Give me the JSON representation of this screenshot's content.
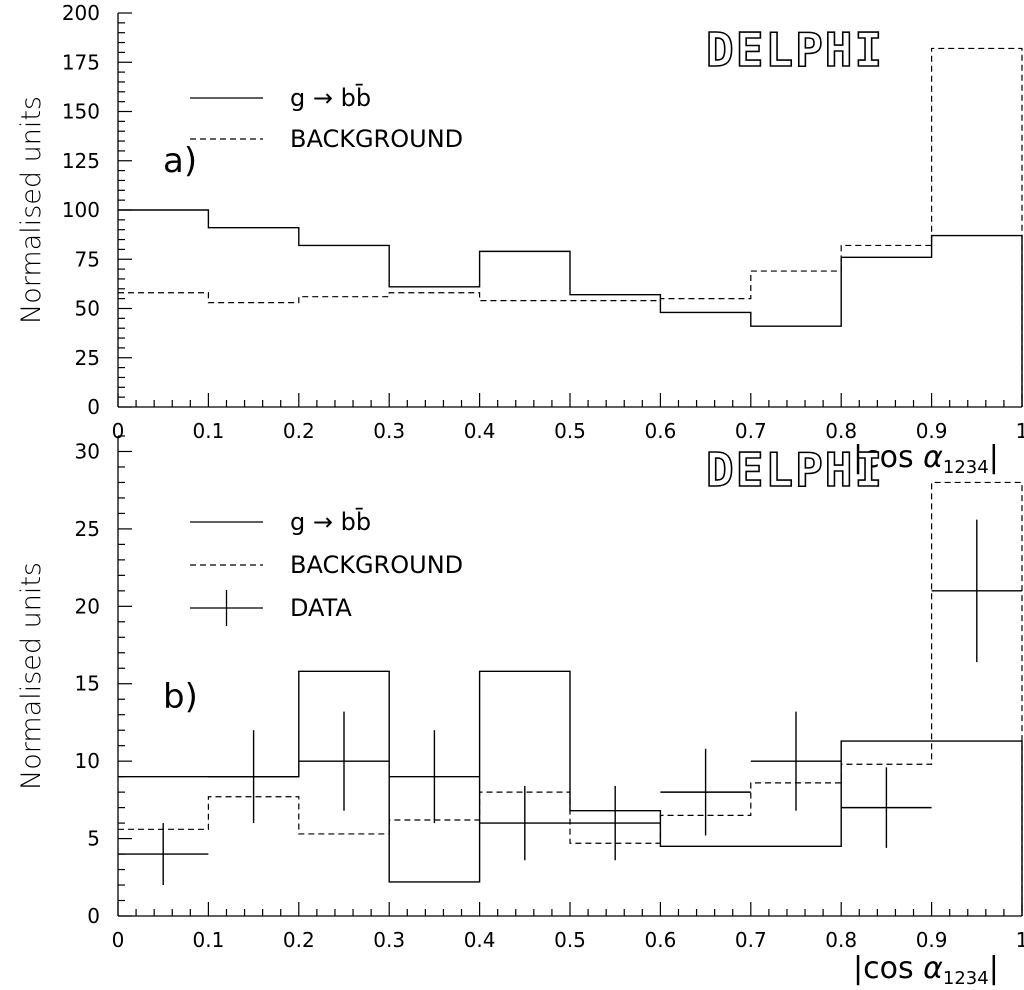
{
  "chart_data": [
    {
      "panel_label": "a)",
      "type": "step-histogram",
      "ylabel": "Normalised units",
      "xlabel_prefix": "|cos ",
      "xlabel_symbol": "α",
      "xlabel_subscript": "1234",
      "xlabel_suffix": "|",
      "xlim": [
        0,
        1
      ],
      "ylim": [
        0,
        200
      ],
      "y_ticks": [
        0,
        25,
        50,
        75,
        100,
        125,
        150,
        175,
        200
      ],
      "x_ticks": [
        0,
        0.1,
        0.2,
        0.3,
        0.4,
        0.5,
        0.6,
        0.7,
        0.8,
        0.9,
        1
      ],
      "x_tick_labels": [
        "0",
        "0.1",
        "0.2",
        "0.3",
        "0.4",
        "0.5",
        "0.6",
        "0.7",
        "0.8",
        "0.9",
        "1"
      ],
      "bin_edges": [
        0,
        0.1,
        0.2,
        0.3,
        0.4,
        0.5,
        0.6,
        0.7,
        0.8,
        0.9,
        1.0
      ],
      "watermark": "DELPHI",
      "legend": [
        {
          "label": "g → bb̄",
          "style": "solid"
        },
        {
          "label": "BACKGROUND",
          "style": "dashed"
        }
      ],
      "series": [
        {
          "name": "g → bb̄",
          "style": "solid",
          "values": [
            100,
            91,
            82,
            61,
            79,
            57,
            48,
            41,
            76,
            87
          ]
        },
        {
          "name": "BACKGROUND",
          "style": "dashed",
          "values": [
            58,
            53,
            56,
            58,
            54,
            54,
            55,
            69,
            82,
            182
          ]
        }
      ]
    },
    {
      "panel_label": "b)",
      "type": "step-histogram",
      "ylabel": "Normalised units",
      "xlabel_prefix": "|cos ",
      "xlabel_symbol": "α",
      "xlabel_subscript": "1234",
      "xlabel_suffix": "|",
      "xlim": [
        0,
        1
      ],
      "ylim": [
        0,
        31
      ],
      "y_ticks": [
        0,
        5,
        10,
        15,
        20,
        25,
        30
      ],
      "x_ticks": [
        0,
        0.1,
        0.2,
        0.3,
        0.4,
        0.5,
        0.6,
        0.7,
        0.8,
        0.9,
        1
      ],
      "x_tick_labels": [
        "0",
        "0.1",
        "0.2",
        "0.3",
        "0.4",
        "0.5",
        "0.6",
        "0.7",
        "0.8",
        "0.9",
        "1"
      ],
      "bin_edges": [
        0,
        0.1,
        0.2,
        0.3,
        0.4,
        0.5,
        0.6,
        0.7,
        0.8,
        0.9,
        1.0
      ],
      "watermark": "DELPHI",
      "legend": [
        {
          "label": "g → bb̄",
          "style": "solid"
        },
        {
          "label": "BACKGROUND",
          "style": "dashed"
        },
        {
          "label": "DATA",
          "style": "errorbar"
        }
      ],
      "series": [
        {
          "name": "g → bb̄",
          "style": "solid",
          "bin_edges": [
            0,
            0.2,
            0.3,
            0.4,
            0.5,
            0.6,
            0.8,
            1.0
          ],
          "values": [
            9,
            15.8,
            2.2,
            15.8,
            6.8,
            4.5,
            11.3
          ]
        },
        {
          "name": "BACKGROUND",
          "style": "dashed",
          "values": [
            5.6,
            7.7,
            5.3,
            6.2,
            8.0,
            4.7,
            6.5,
            8.6,
            9.8,
            28
          ]
        }
      ],
      "data_points": {
        "name": "DATA",
        "x": [
          0.05,
          0.15,
          0.25,
          0.35,
          0.45,
          0.55,
          0.65,
          0.75,
          0.85,
          0.95
        ],
        "y": [
          4,
          9,
          10,
          9,
          6,
          6,
          8,
          10,
          7,
          21
        ],
        "yerr": [
          2.0,
          3.0,
          3.2,
          3.0,
          2.4,
          2.4,
          2.8,
          3.2,
          2.6,
          4.6
        ]
      }
    }
  ]
}
